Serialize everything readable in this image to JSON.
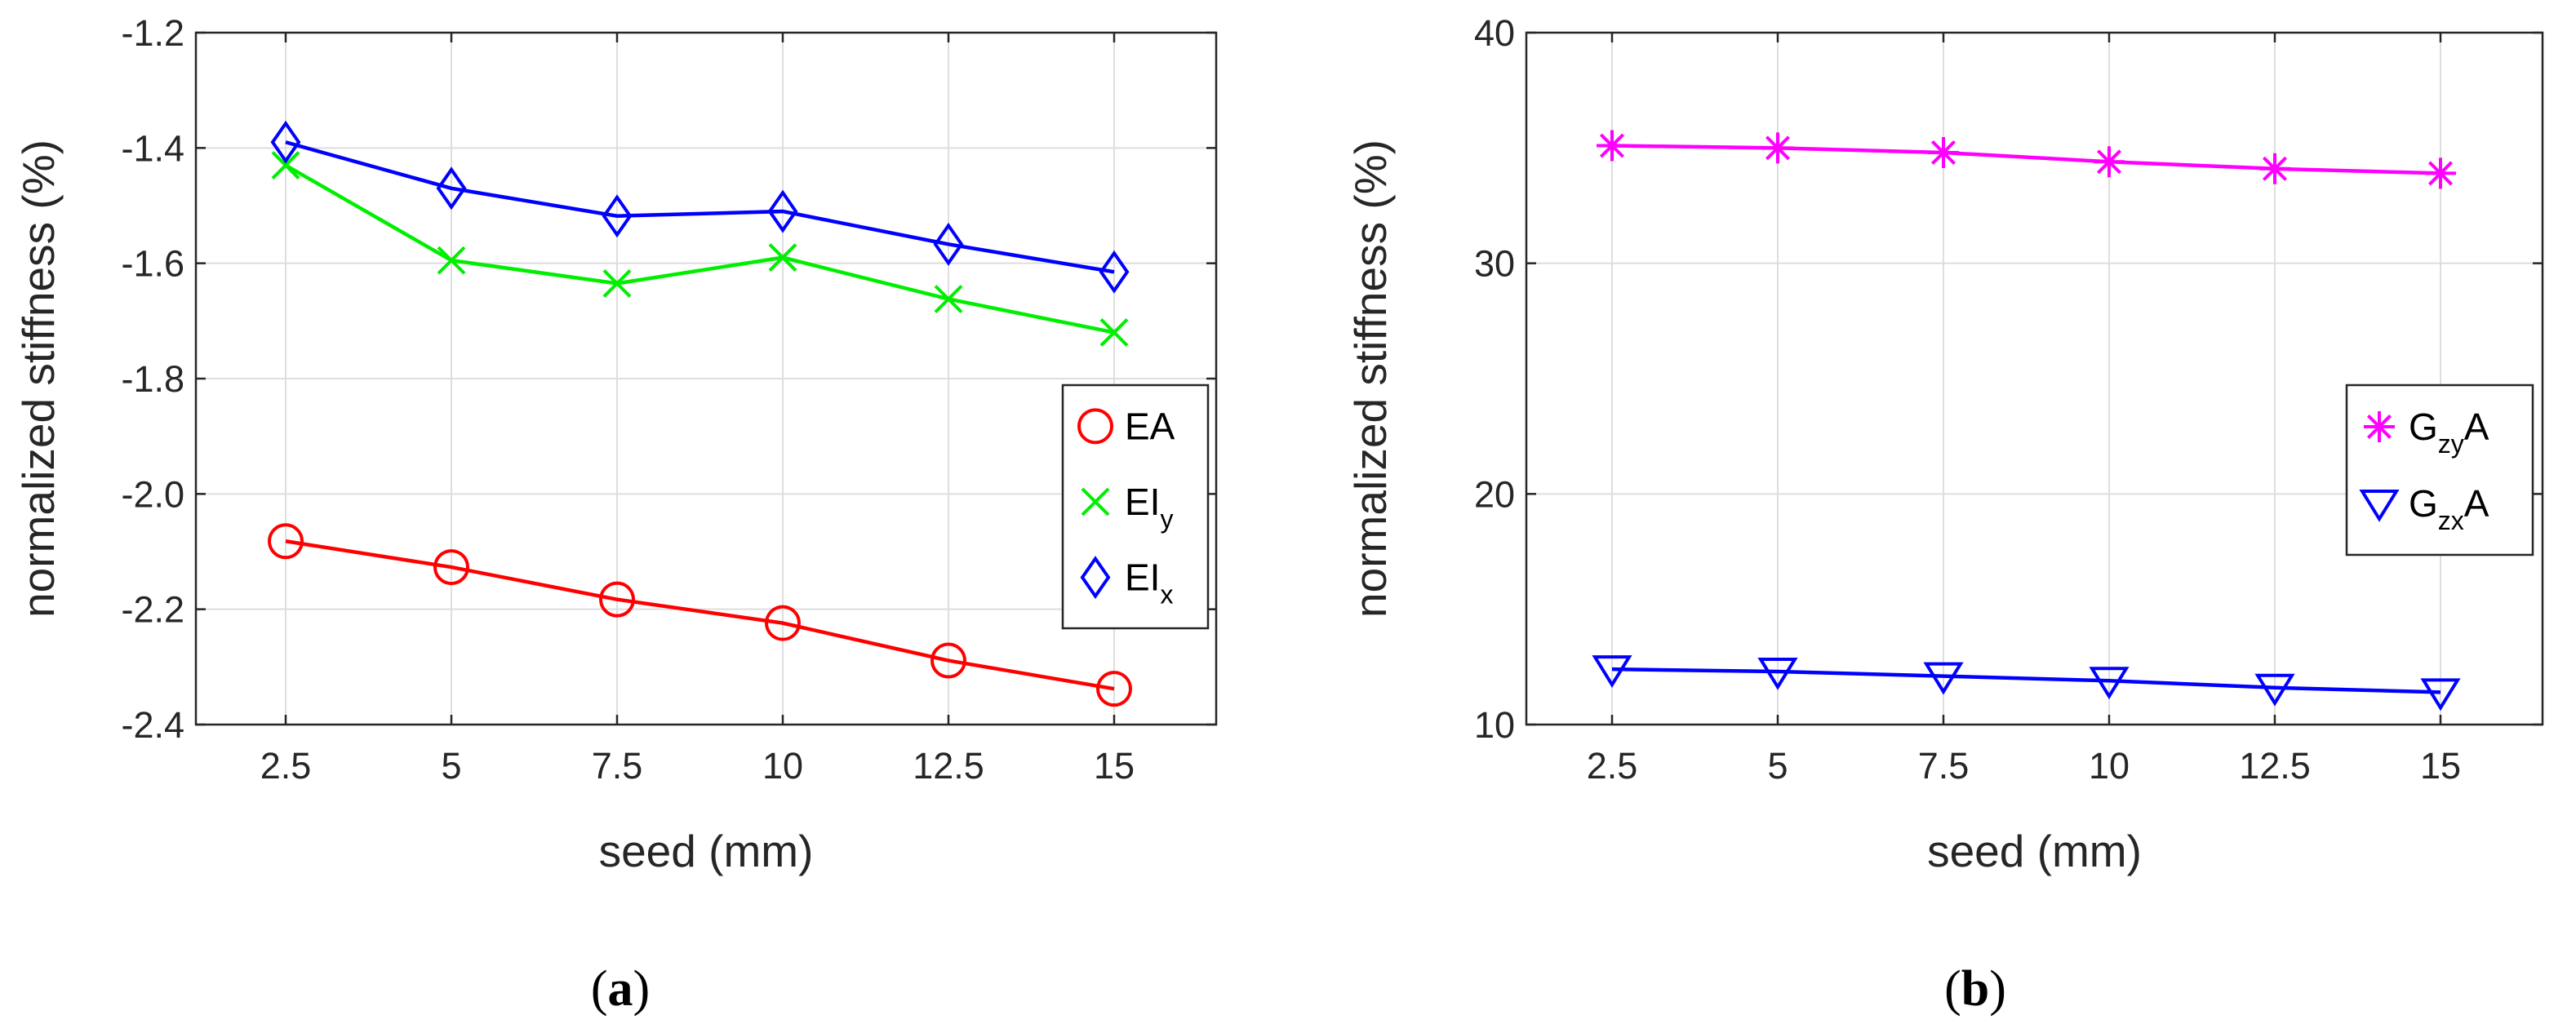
{
  "chart_data": [
    {
      "type": "line",
      "panel_label": "(a)",
      "caption": {
        "open": "(",
        "letter": "a",
        "close": ")"
      },
      "xlabel": "seed (mm)",
      "ylabel": "normalized stiffness (%)",
      "ylim": [
        -2.4,
        -1.2
      ],
      "yticks": [
        "-1.2",
        "-1.4",
        "-1.6",
        "-1.8",
        "-2.0",
        "-2.2",
        "-2.4"
      ],
      "yticks_values": [
        -1.2,
        -1.4,
        -1.6,
        -1.8,
        -2.0,
        -2.2,
        -2.4
      ],
      "categories": [
        "2.5",
        "5",
        "7.5",
        "10",
        "12.5",
        "15"
      ],
      "x": [
        2.5,
        5,
        7.5,
        10,
        12.5,
        15
      ],
      "grid": true,
      "legend_position": "right-center",
      "series": [
        {
          "name": "EA",
          "legend_main": "EA",
          "legend_sub": "",
          "color": "#ff0000",
          "marker": "circle",
          "values": [
            -2.082,
            -2.127,
            -2.183,
            -2.224,
            -2.289,
            -2.338
          ]
        },
        {
          "name": "EIy",
          "legend_main": "EI",
          "legend_sub": "y",
          "color": "#00ee00",
          "marker": "x",
          "values": [
            -1.43,
            -1.595,
            -1.635,
            -1.59,
            -1.662,
            -1.72
          ]
        },
        {
          "name": "EIx",
          "legend_main": "EI",
          "legend_sub": "x",
          "color": "#0000ff",
          "marker": "diamond",
          "values": [
            -1.39,
            -1.47,
            -1.518,
            -1.51,
            -1.567,
            -1.615
          ]
        }
      ]
    },
    {
      "type": "line",
      "panel_label": "(b)",
      "caption": {
        "open": "(",
        "letter": "b",
        "close": ")"
      },
      "xlabel": "seed (mm)",
      "ylabel": "normalized stiffness (%)",
      "ylim": [
        10,
        40
      ],
      "yticks": [
        "40",
        "30",
        "20",
        "10"
      ],
      "yticks_values": [
        40,
        30,
        20,
        10
      ],
      "categories": [
        "2.5",
        "5",
        "7.5",
        "10",
        "12.5",
        "15"
      ],
      "x": [
        2.5,
        5,
        7.5,
        10,
        12.5,
        15
      ],
      "grid": true,
      "legend_position": "right-center",
      "series": [
        {
          "name": "GzyA",
          "legend_main": "G",
          "legend_sub": "zy",
          "legend_tail": "A",
          "color": "#ff00ff",
          "marker": "asterisk",
          "values": [
            35.1,
            35.0,
            34.8,
            34.4,
            34.1,
            33.9
          ]
        },
        {
          "name": "GzxA",
          "legend_main": "G",
          "legend_sub": "zx",
          "legend_tail": "A",
          "color": "#0000ff",
          "marker": "triangle-down",
          "values": [
            12.4,
            12.3,
            12.1,
            11.9,
            11.6,
            11.4
          ]
        }
      ]
    }
  ]
}
